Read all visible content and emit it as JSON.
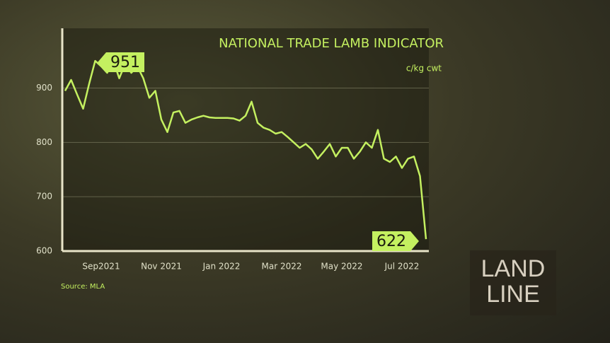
{
  "chart_data": {
    "type": "line",
    "title": "NATIONAL TRADE LAMB INDICATOR",
    "subtitle": "c/kg cwt",
    "source": "Source: MLA",
    "logo": [
      "LAND",
      "LINE"
    ],
    "annotations": [
      {
        "text": "951",
        "value": 951
      },
      {
        "text": "622",
        "value": 622
      }
    ],
    "categories": [
      null,
      null,
      null,
      null,
      null,
      null,
      "Sep2021",
      null,
      null,
      null,
      null,
      null,
      null,
      null,
      null,
      null,
      "Nov 2021",
      null,
      null,
      null,
      null,
      null,
      null,
      null,
      null,
      null,
      "Jan 2022",
      null,
      null,
      null,
      null,
      null,
      null,
      null,
      null,
      null,
      "Mar 2022",
      null,
      null,
      null,
      null,
      null,
      null,
      null,
      null,
      null,
      "May 2022",
      null,
      null,
      null,
      null,
      null,
      null,
      null,
      null,
      null,
      "Jul 2022",
      null,
      null,
      null,
      null
    ],
    "series": [
      {
        "name": "National Trade Lamb Indicator",
        "color": "#c4f060",
        "values": [
          895,
          915,
          888,
          862,
          908,
          950,
          940,
          928,
          951,
          918,
          945,
          928,
          940,
          918,
          882,
          895,
          842,
          819,
          855,
          858,
          836,
          842,
          846,
          849,
          846,
          845,
          845,
          845,
          844,
          840,
          849,
          875,
          836,
          827,
          823,
          816,
          819,
          810,
          800,
          790,
          797,
          787,
          770,
          783,
          797,
          774,
          790,
          790,
          770,
          783,
          800,
          790,
          823,
          770,
          764,
          774,
          753,
          770,
          774,
          738,
          622
        ]
      }
    ],
    "ylim": [
      600,
      1010
    ],
    "yticks": [
      600,
      700,
      800,
      900
    ],
    "grid": true
  }
}
